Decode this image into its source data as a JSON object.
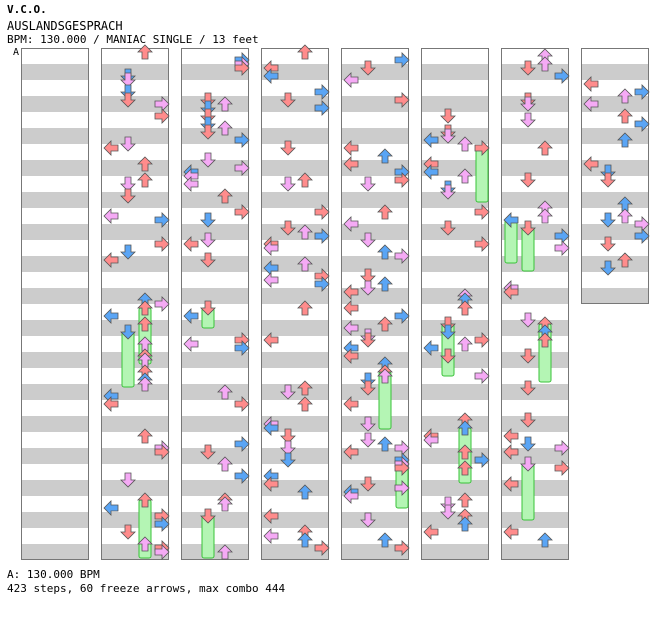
{
  "header": {
    "artist": "V.C.O.",
    "title": "AUSLANDSGESPRACH",
    "meta": "BPM: 130.000 / MANIAC SINGLE / 13 feet",
    "bpm_marker": "A"
  },
  "footer": {
    "bpm_line": "A: 130.000 BPM",
    "stats_line": "423 steps, 60 freeze arrows, max combo 444"
  },
  "colors": {
    "stripe": "#cccccc",
    "quarter_red": "#ff8c8c",
    "eighth_blue": "#5aa5f5",
    "sixteenth_pink": "#f5aaf5",
    "freeze_green": "#b4f5b4",
    "freeze_outline": "#39c239"
  },
  "chart_data": {
    "type": "step-chart",
    "mode": "MANIAC SINGLE",
    "bpm": 130,
    "difficulty_feet": 13,
    "columns": 8,
    "measures_per_column": 8,
    "total_measures": 60,
    "lanes": [
      "left",
      "down",
      "up",
      "right"
    ],
    "steps": 423,
    "freeze_arrows": 60,
    "max_combo": 444,
    "legend": {
      "quarter": "red",
      "eighth": "blue",
      "sixteenth": "pink",
      "freeze": "green"
    }
  }
}
